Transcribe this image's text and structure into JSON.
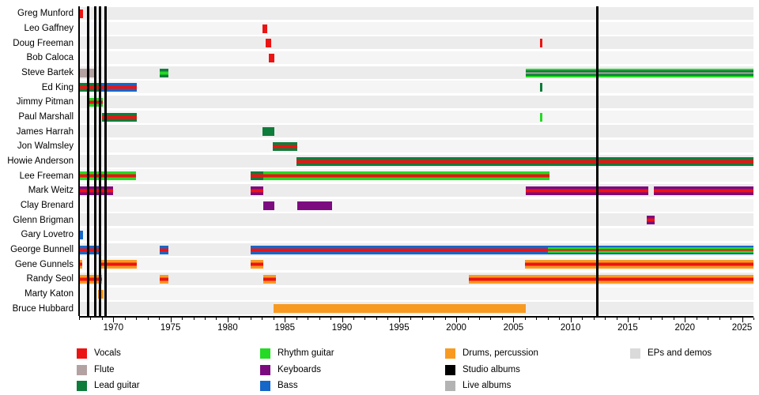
{
  "page": {
    "background": "#ffffff"
  },
  "chart_data": {
    "type": "bar",
    "subtype": "band-membership-timeline",
    "title": "",
    "xlabel": "",
    "ylabel": "",
    "x_axis": {
      "start": 1967,
      "end": 2026,
      "major_tick_years": [
        1970,
        1975,
        1980,
        1985,
        1990,
        1995,
        2000,
        2005,
        2010,
        2015,
        2020,
        2025
      ],
      "minor_tick_interval": 1
    },
    "palette": {
      "vocals": "#ec1313",
      "flute": "#b3a2a2",
      "lead": "#0e7c3a",
      "rhythm": "#24da24",
      "keys": "#7c0b80",
      "bass": "#1567c8",
      "drums": "#f89a20",
      "studio": "#000000",
      "live": "#b3b3b3",
      "eps": "#dadada"
    },
    "lane_colors": [
      "#ececec",
      "#f5f5f5"
    ],
    "members": [
      {
        "name": "Greg Munford",
        "bars": [
          {
            "from": 1967.0,
            "to": 1967.35,
            "roles": [
              "vocals"
            ]
          }
        ]
      },
      {
        "name": "Leo Gaffney",
        "bars": [
          {
            "from": 1983.05,
            "to": 1983.45,
            "roles": [
              "vocals"
            ]
          }
        ]
      },
      {
        "name": "Doug Freeman",
        "bars": [
          {
            "from": 1983.35,
            "to": 1983.8,
            "roles": [
              "vocals"
            ]
          },
          {
            "from": 2007.35,
            "to": 2007.5,
            "roles": [
              "vocals"
            ]
          }
        ]
      },
      {
        "name": "Bob Caloca",
        "bars": [
          {
            "from": 1983.6,
            "to": 1984.1,
            "roles": [
              "vocals"
            ]
          }
        ]
      },
      {
        "name": "Steve Bartek",
        "bars": [
          {
            "from": 1967.0,
            "to": 1968.3,
            "roles": [
              "flute"
            ]
          },
          {
            "from": 1974.05,
            "to": 1974.85,
            "roles": [
              "lead",
              "rhythm",
              "lead"
            ]
          },
          {
            "from": 2006.1,
            "to": 2026.0,
            "roles": [
              "rhythm",
              "lead",
              "flute",
              "lead",
              "rhythm"
            ]
          }
        ]
      },
      {
        "name": "Ed King",
        "bars": [
          {
            "from": 1967.0,
            "to": 1968.95,
            "roles": [
              "lead",
              "vocals",
              "lead"
            ]
          },
          {
            "from": 1968.95,
            "to": 1972.05,
            "roles": [
              "bass",
              "vocals",
              "bass"
            ]
          },
          {
            "from": 2007.35,
            "to": 2007.5,
            "roles": [
              "lead"
            ]
          }
        ]
      },
      {
        "name": "Jimmy Pitman",
        "bars": [
          {
            "from": 1967.9,
            "to": 1969.05,
            "roles": [
              "rhythm",
              "vocals",
              "rhythm"
            ]
          }
        ]
      },
      {
        "name": "Paul Marshall",
        "bars": [
          {
            "from": 1969.0,
            "to": 1972.05,
            "roles": [
              "lead",
              "vocals",
              "lead"
            ]
          },
          {
            "from": 2007.35,
            "to": 2007.5,
            "roles": [
              "rhythm"
            ]
          }
        ]
      },
      {
        "name": "James Harrah",
        "bars": [
          {
            "from": 1983.05,
            "to": 1984.1,
            "roles": [
              "lead"
            ]
          }
        ]
      },
      {
        "name": "Jon Walmsley",
        "bars": [
          {
            "from": 1983.95,
            "to": 1986.1,
            "roles": [
              "lead",
              "vocals",
              "lead"
            ]
          }
        ]
      },
      {
        "name": "Howie Anderson",
        "bars": [
          {
            "from": 1986.0,
            "to": 2026.0,
            "roles": [
              "lead",
              "vocals",
              "lead"
            ]
          }
        ]
      },
      {
        "name": "Lee Freeman",
        "bars": [
          {
            "from": 1967.0,
            "to": 1972.0,
            "roles": [
              "rhythm",
              "vocals",
              "rhythm"
            ]
          },
          {
            "from": 1982.0,
            "to": 1983.1,
            "roles": [
              "lead",
              "vocals",
              "lead"
            ]
          },
          {
            "from": 1983.1,
            "to": 2008.15,
            "roles": [
              "rhythm",
              "vocals",
              "rhythm"
            ]
          }
        ]
      },
      {
        "name": "Mark Weitz",
        "bars": [
          {
            "from": 1967.0,
            "to": 1970.0,
            "roles": [
              "keys",
              "vocals",
              "keys"
            ]
          },
          {
            "from": 1982.0,
            "to": 1983.1,
            "roles": [
              "keys",
              "vocals",
              "keys"
            ]
          },
          {
            "from": 2006.1,
            "to": 2016.8,
            "roles": [
              "keys",
              "vocals",
              "keys"
            ]
          },
          {
            "from": 2017.3,
            "to": 2026.0,
            "roles": [
              "keys",
              "vocals",
              "keys"
            ]
          }
        ]
      },
      {
        "name": "Clay Brenard",
        "bars": [
          {
            "from": 1983.1,
            "to": 1984.1,
            "roles": [
              "keys"
            ]
          },
          {
            "from": 1986.1,
            "to": 1989.1,
            "roles": [
              "keys"
            ]
          }
        ]
      },
      {
        "name": "Glenn Brigman",
        "bars": [
          {
            "from": 2016.65,
            "to": 2017.35,
            "roles": [
              "keys",
              "vocals",
              "keys"
            ]
          }
        ]
      },
      {
        "name": "Gary Lovetro",
        "bars": [
          {
            "from": 1967.0,
            "to": 1967.35,
            "roles": [
              "bass"
            ]
          }
        ]
      },
      {
        "name": "George Bunnell",
        "bars": [
          {
            "from": 1967.0,
            "to": 1968.95,
            "roles": [
              "bass",
              "vocals",
              "bass"
            ]
          },
          {
            "from": 1974.05,
            "to": 1974.85,
            "roles": [
              "bass",
              "vocals",
              "bass"
            ]
          },
          {
            "from": 1982.0,
            "to": 2008.05,
            "roles": [
              "bass",
              "vocals",
              "bass"
            ]
          },
          {
            "from": 2008.05,
            "to": 2026.0,
            "roles": [
              "bass",
              "rhythm",
              "vocals",
              "rhythm",
              "bass"
            ]
          }
        ]
      },
      {
        "name": "Gene Gunnels",
        "bars": [
          {
            "from": 1967.0,
            "to": 1967.3,
            "roles": [
              "drums",
              "vocals",
              "drums"
            ]
          },
          {
            "from": 1968.95,
            "to": 1972.05,
            "roles": [
              "drums",
              "vocals",
              "drums"
            ]
          },
          {
            "from": 1982.0,
            "to": 1983.1,
            "roles": [
              "drums",
              "vocals",
              "drums"
            ]
          },
          {
            "from": 2006.0,
            "to": 2026.0,
            "roles": [
              "drums",
              "vocals",
              "drums"
            ]
          }
        ]
      },
      {
        "name": "Randy Seol",
        "bars": [
          {
            "from": 1967.0,
            "to": 1969.0,
            "roles": [
              "drums",
              "vocals",
              "drums"
            ]
          },
          {
            "from": 1974.05,
            "to": 1974.85,
            "roles": [
              "drums",
              "vocals",
              "drums"
            ]
          },
          {
            "from": 1983.1,
            "to": 1984.2,
            "roles": [
              "drums",
              "vocals",
              "drums"
            ]
          },
          {
            "from": 2001.1,
            "to": 2026.0,
            "roles": [
              "drums",
              "vocals",
              "drums"
            ]
          }
        ]
      },
      {
        "name": "Marty Katon",
        "bars": [
          {
            "from": 1968.65,
            "to": 1969.15,
            "roles": [
              "drums"
            ]
          }
        ]
      },
      {
        "name": "Bruce Hubbard",
        "bars": [
          {
            "from": 1984.0,
            "to": 2006.1,
            "roles": [
              "drums"
            ]
          }
        ]
      }
    ],
    "event_lines": {
      "studio_albums": [
        1967.8,
        1968.4,
        1968.85,
        1969.35,
        2012.35
      ]
    },
    "legend": {
      "columns": [
        [
          {
            "label": "Vocals",
            "color_key": "vocals"
          },
          {
            "label": "Flute",
            "color_key": "flute"
          },
          {
            "label": "Lead guitar",
            "color_key": "lead"
          }
        ],
        [
          {
            "label": "Rhythm guitar",
            "color_key": "rhythm"
          },
          {
            "label": "Keyboards",
            "color_key": "keys"
          },
          {
            "label": "Bass",
            "color_key": "bass"
          }
        ],
        [
          {
            "label": "Drums, percussion",
            "color_key": "drums"
          },
          {
            "label": "Studio albums",
            "color_key": "studio"
          },
          {
            "label": "Live albums",
            "color_key": "live"
          }
        ],
        [
          {
            "label": "EPs and demos",
            "color_key": "eps"
          }
        ]
      ]
    }
  }
}
